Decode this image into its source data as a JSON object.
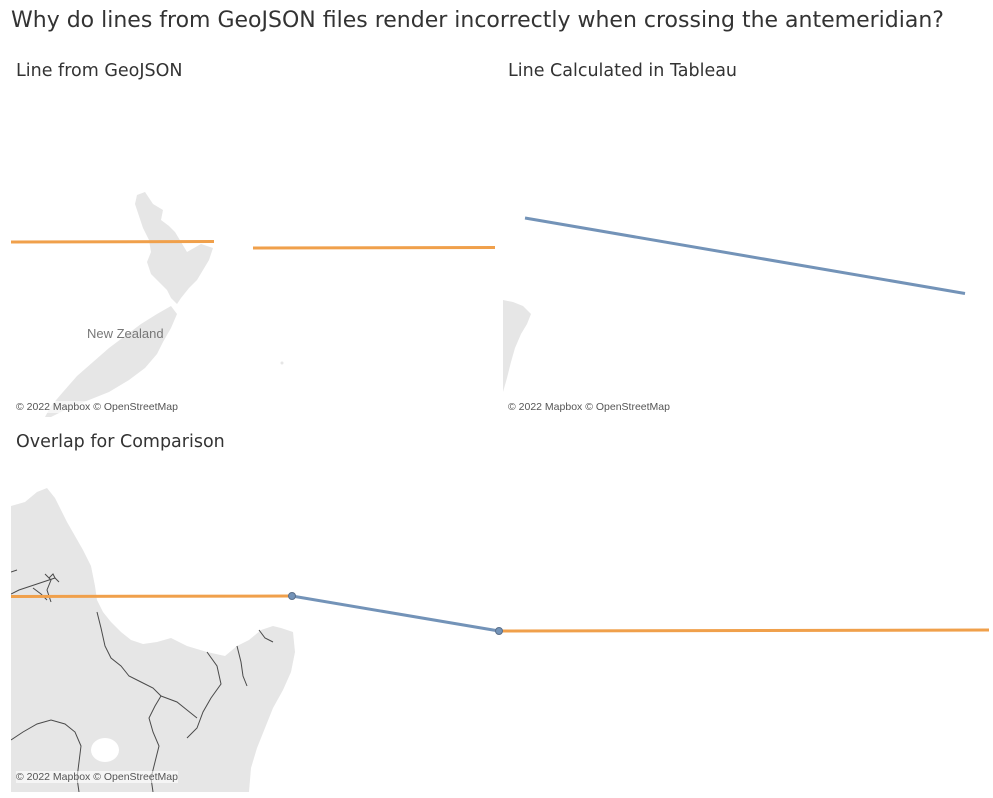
{
  "page": {
    "title": "Why do lines from GeoJSON files render incorrectly when crossing the antemeridian?"
  },
  "colors": {
    "geojson_line": "#F0A04B",
    "tableau_line": "#7393B8",
    "land": "#E6E6E6",
    "boundary": "#4A4A4A"
  },
  "panels": [
    {
      "title": "Line from GeoJSON",
      "attribution": "© 2022 Mapbox © OpenStreetMap",
      "place_label": "New Zealand",
      "icon": "map-icon"
    },
    {
      "title": "Line Calculated in Tableau",
      "attribution": "© 2022 Mapbox © OpenStreetMap",
      "icon": "map-icon"
    },
    {
      "title": "Overlap for Comparison",
      "attribution": "© 2022 Mapbox © OpenStreetMap",
      "icon": "map-icon"
    }
  ]
}
